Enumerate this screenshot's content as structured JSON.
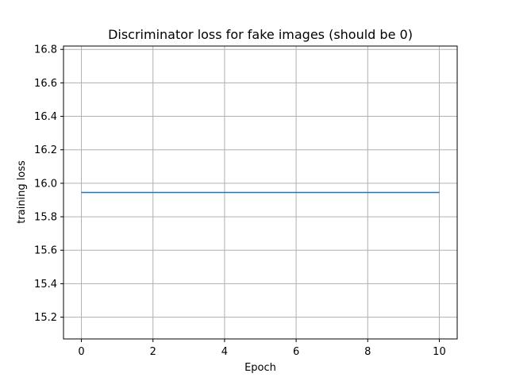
{
  "chart_data": {
    "type": "line",
    "title": "Discriminator loss for fake images (should be 0)",
    "xlabel": "Epoch",
    "ylabel": "training loss",
    "xlim": [
      -0.5,
      10.5
    ],
    "ylim": [
      15.07,
      16.82
    ],
    "xticks": [
      0,
      2,
      4,
      6,
      8,
      10
    ],
    "yticks": [
      15.2,
      15.4,
      15.6,
      15.8,
      16.0,
      16.2,
      16.4,
      16.6,
      16.8
    ],
    "grid": true,
    "series": [
      {
        "color": "#1f77b4",
        "x": [
          0,
          1,
          2,
          3,
          4,
          5,
          6,
          7,
          8,
          9,
          10
        ],
        "y": [
          15.945,
          15.945,
          15.945,
          15.945,
          15.945,
          15.945,
          15.945,
          15.945,
          15.945,
          15.945,
          15.945
        ]
      }
    ]
  }
}
